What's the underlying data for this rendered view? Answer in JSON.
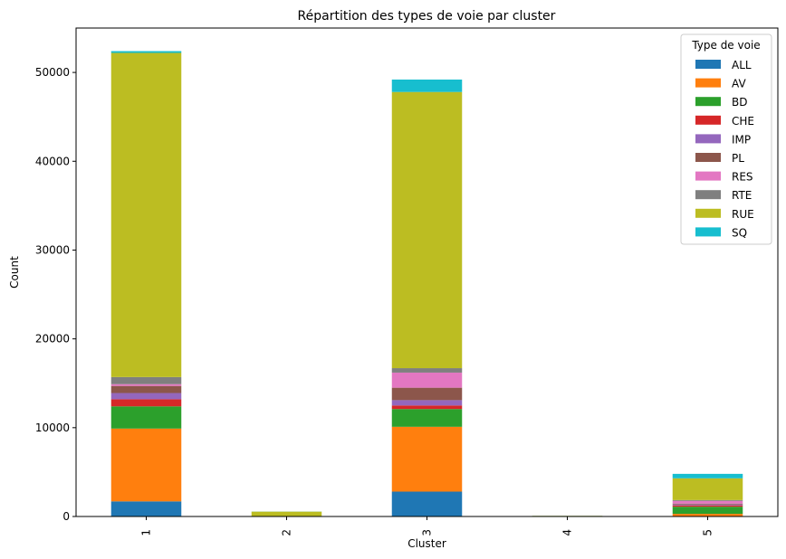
{
  "chart_data": {
    "type": "bar",
    "stacked": true,
    "title": "Répartition des types de voie par cluster",
    "xlabel": "Cluster",
    "ylabel": "Count",
    "categories": [
      "1",
      "2",
      "3",
      "4",
      "5"
    ],
    "ylim": [
      0,
      55000
    ],
    "yticks": [
      0,
      10000,
      20000,
      30000,
      40000,
      50000
    ],
    "legend": {
      "title": "Type de voie",
      "placement": "top-right"
    },
    "series": [
      {
        "name": "ALL",
        "color": "#1f77b4",
        "values": [
          1700,
          5,
          2800,
          2,
          50
        ]
      },
      {
        "name": "AV",
        "color": "#ff7f0e",
        "values": [
          8200,
          15,
          7300,
          3,
          250
        ]
      },
      {
        "name": "BD",
        "color": "#2ca02c",
        "values": [
          2500,
          8,
          2000,
          2,
          800
        ]
      },
      {
        "name": "CHE",
        "color": "#d62728",
        "values": [
          800,
          5,
          400,
          1,
          150
        ]
      },
      {
        "name": "IMP",
        "color": "#9467bd",
        "values": [
          700,
          5,
          600,
          1,
          100
        ]
      },
      {
        "name": "PL",
        "color": "#8c564b",
        "values": [
          800,
          5,
          1400,
          1,
          100
        ]
      },
      {
        "name": "RES",
        "color": "#e377c2",
        "values": [
          200,
          2,
          1700,
          1,
          300
        ]
      },
      {
        "name": "RTE",
        "color": "#7f7f7f",
        "values": [
          800,
          5,
          500,
          1,
          100
        ]
      },
      {
        "name": "RUE",
        "color": "#bcbd22",
        "values": [
          36500,
          500,
          31100,
          60,
          2450
        ]
      },
      {
        "name": "SQ",
        "color": "#17becf",
        "values": [
          200,
          10,
          1400,
          5,
          500
        ]
      }
    ]
  }
}
